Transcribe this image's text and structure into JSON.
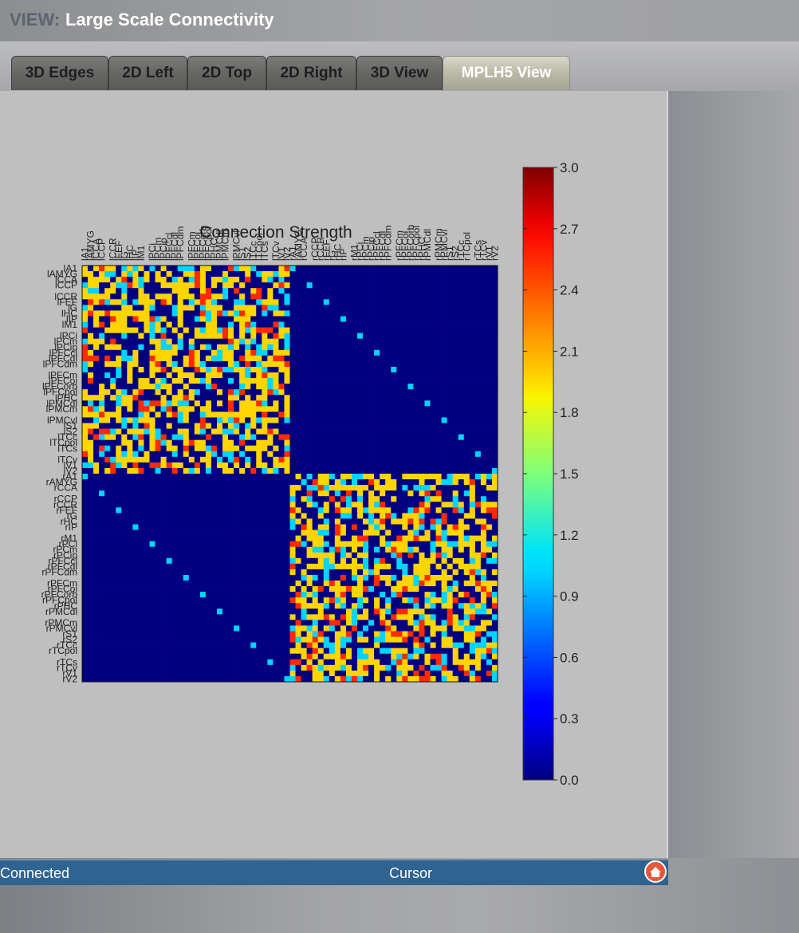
{
  "header": {
    "view_label": "VIEW:",
    "title": "Large Scale Connectivity"
  },
  "tabs": [
    {
      "label": "3D Edges",
      "active": false
    },
    {
      "label": "2D Left",
      "active": false
    },
    {
      "label": "2D Top",
      "active": false
    },
    {
      "label": "2D Right",
      "active": false
    },
    {
      "label": "3D View",
      "active": false
    },
    {
      "label": "MPLH5 View",
      "active": true
    }
  ],
  "status": {
    "left": "Connected",
    "center": "Cursor",
    "home_icon": "home-icon"
  },
  "colors": {
    "status_bar": "#2f6391",
    "colormap": "jet",
    "home_icon": "#e8573a"
  },
  "chart_data": {
    "type": "heatmap",
    "title": "Connection Strength",
    "colorbar": {
      "min": 0.0,
      "max": 3.0,
      "ticks": [
        "0.0",
        "0.3",
        "0.6",
        "0.9",
        "1.2",
        "1.5",
        "1.8",
        "2.1",
        "2.4",
        "2.7",
        "3.0"
      ]
    },
    "matrix_size": 74,
    "block_size": 37,
    "values_present": [
      0.0,
      1.0,
      2.0,
      2.5
    ],
    "row_labels_visible": [
      "lA1",
      "lAMYG",
      "lCCA",
      "lCCP",
      "lCCR",
      "lFEF",
      "lG",
      "lHC",
      "lIP",
      "lM1",
      "lPCi",
      "lPCm",
      "lPCip",
      "lPFCcl",
      "lPFCdl",
      "lPFCdm",
      "lPFCm",
      "lPFCoi",
      "lPFCorb",
      "lPFCpol",
      "lPHC",
      "lPMCdl",
      "lPMCm",
      "lPMCvl",
      "lS1",
      "lS2",
      "lTCc",
      "lTCpol",
      "lTCs",
      "lTCv",
      "lV1",
      "lV2",
      "rA1",
      "rAMYG",
      "rCCA",
      "rCCP",
      "rCCR",
      "rFEF",
      "rG",
      "rHC",
      "rIP",
      "rM1",
      "rPCi",
      "rPCm",
      "rPCip",
      "rPFCcl",
      "rPFCdl",
      "rPFCdm",
      "rPFCm",
      "rPFCoi",
      "rPFCorb",
      "rPFCpol",
      "rPHC",
      "rPMCdl",
      "rPMCm",
      "rPMCvl",
      "rS1",
      "rS2",
      "rTCc",
      "rTCpol",
      "rTCs",
      "rTCv",
      "rV1",
      "rV2"
    ],
    "column_labels_visible": [
      "lA1",
      "lAMYG",
      "lCCA",
      "lCCP",
      "lCCR",
      "lFEF",
      "lG",
      "lHC",
      "lIP",
      "lM1",
      "lPCi",
      "lPCm",
      "lPCip",
      "lPFCcl",
      "lPFCdl",
      "lPFCdm",
      "lPFCm",
      "lPFCoi",
      "lPFCorb",
      "lPFCpol",
      "lPHC",
      "lPMCdl",
      "lPMCm",
      "lPMCvl",
      "lS1",
      "lS2",
      "lTCc",
      "lTCpol",
      "lTCs",
      "lTCv",
      "lV1",
      "lV2",
      "rA1",
      "rAMYG",
      "rCCA",
      "rCCP",
      "rCCR",
      "rFEF",
      "rG",
      "rHC",
      "rIP",
      "rM1",
      "rPCi",
      "rPCm",
      "rPCip",
      "rPFCcl",
      "rPFCdl",
      "rPFCdm",
      "rPFCm",
      "rPFCoi",
      "rPFCorb",
      "rPFCpol",
      "rPHC",
      "rPMCdl",
      "rPMCm",
      "rPMCvl",
      "rS1",
      "rS2",
      "rTCc",
      "rTCpol",
      "rTCs",
      "rTCv",
      "rV1",
      "rV2"
    ]
  }
}
